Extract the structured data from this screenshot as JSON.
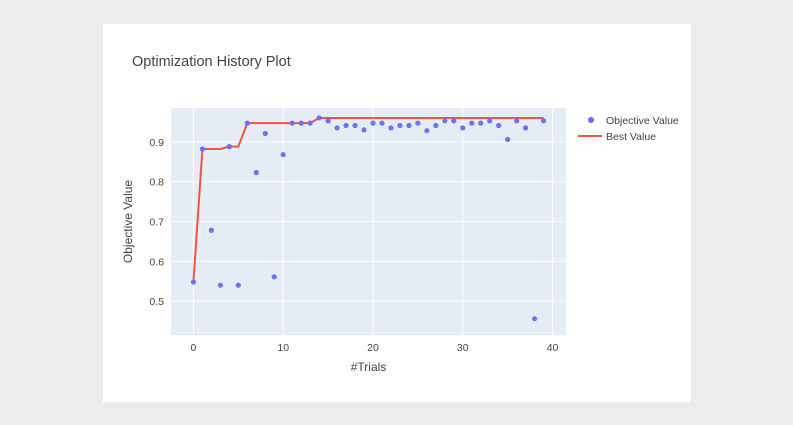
{
  "chart_data": {
    "type": "scatter",
    "title": "Optimization History Plot",
    "xlabel": "#Trials",
    "ylabel": "Objective Value",
    "xlim": [
      -2.5,
      41.5
    ],
    "ylim": [
      0.415,
      0.985
    ],
    "x_ticks": [
      0,
      10,
      20,
      30,
      40
    ],
    "y_ticks": [
      0.5,
      0.6,
      0.7,
      0.8,
      0.9
    ],
    "y_tick_labels": [
      "0.5",
      "0.6",
      "0.7",
      "0.8",
      "0.9"
    ],
    "grid": true,
    "legend_position": "right",
    "series": [
      {
        "name": "Objective Value",
        "mode": "markers",
        "color": "#636efa",
        "x": [
          0,
          1,
          2,
          3,
          4,
          5,
          6,
          7,
          8,
          9,
          10,
          11,
          12,
          13,
          14,
          15,
          16,
          17,
          18,
          19,
          20,
          21,
          22,
          23,
          24,
          25,
          26,
          27,
          28,
          29,
          30,
          31,
          32,
          33,
          34,
          35,
          36,
          37,
          38,
          39
        ],
        "y": [
          0.548,
          0.882,
          0.678,
          0.54,
          0.888,
          0.54,
          0.947,
          0.823,
          0.921,
          0.561,
          0.868,
          0.947,
          0.947,
          0.947,
          0.96,
          0.953,
          0.935,
          0.941,
          0.941,
          0.93,
          0.947,
          0.947,
          0.935,
          0.941,
          0.941,
          0.947,
          0.928,
          0.941,
          0.953,
          0.953,
          0.935,
          0.947,
          0.947,
          0.953,
          0.941,
          0.906,
          0.953,
          0.935,
          0.456,
          0.953
        ]
      },
      {
        "name": "Best Value",
        "mode": "line",
        "color": "#ef553b",
        "x": [
          0,
          1,
          2,
          3,
          4,
          5,
          6,
          7,
          8,
          9,
          10,
          11,
          12,
          13,
          14,
          15,
          16,
          17,
          18,
          19,
          20,
          21,
          22,
          23,
          24,
          25,
          26,
          27,
          28,
          29,
          30,
          31,
          32,
          33,
          34,
          35,
          36,
          37,
          38,
          39
        ],
        "y": [
          0.548,
          0.882,
          0.882,
          0.882,
          0.888,
          0.888,
          0.947,
          0.947,
          0.947,
          0.947,
          0.947,
          0.947,
          0.947,
          0.947,
          0.96,
          0.96,
          0.96,
          0.96,
          0.96,
          0.96,
          0.96,
          0.96,
          0.96,
          0.96,
          0.96,
          0.96,
          0.96,
          0.96,
          0.96,
          0.96,
          0.96,
          0.96,
          0.96,
          0.96,
          0.96,
          0.96,
          0.96,
          0.96,
          0.96,
          0.96
        ]
      }
    ]
  }
}
